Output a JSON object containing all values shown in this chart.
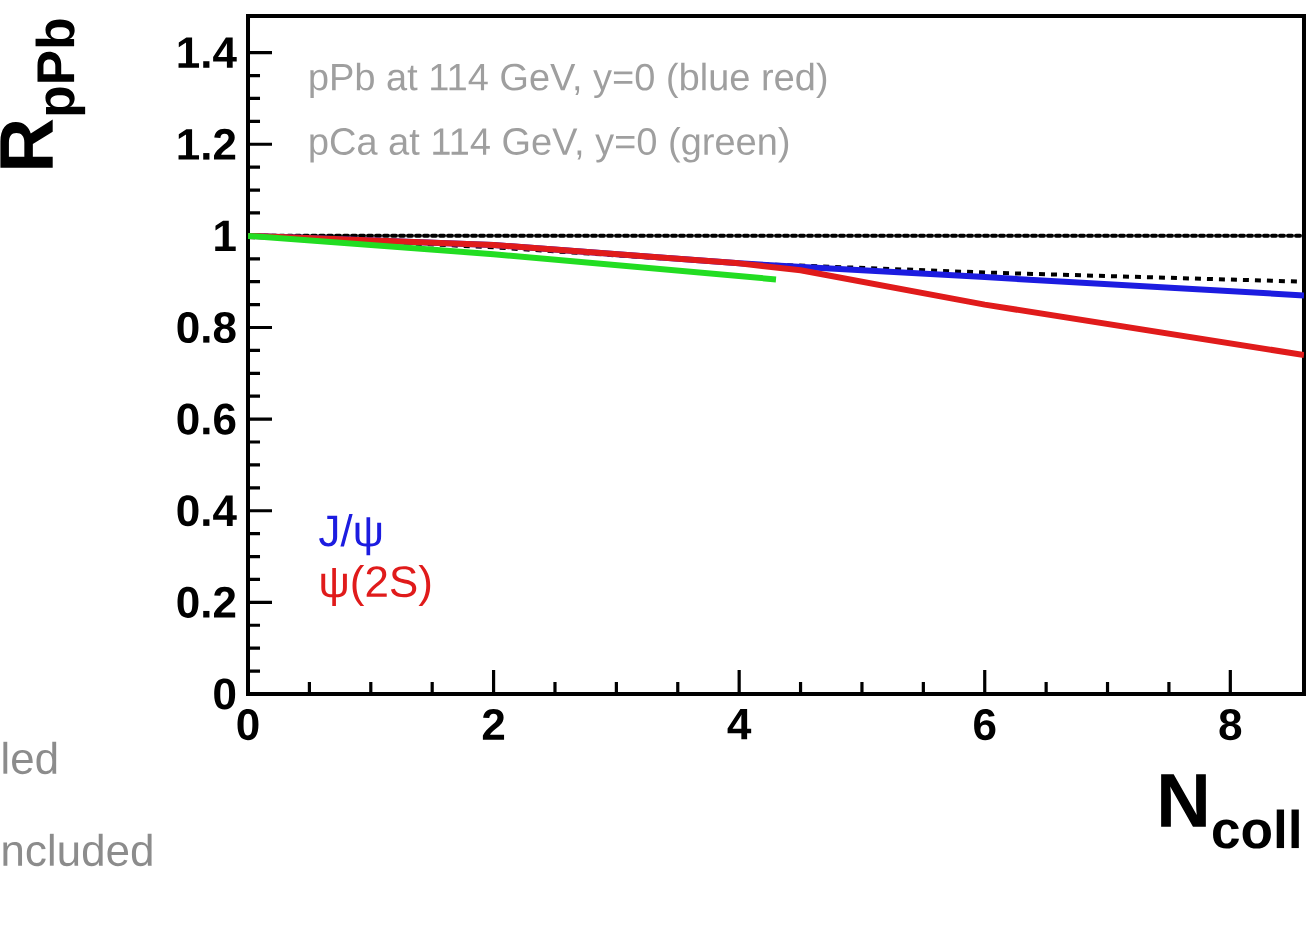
{
  "chart_data": {
    "type": "line",
    "xlabel": "N$_{coll}$",
    "ylabel": "R$_{pPb}$",
    "xlim": [
      0,
      8.6
    ],
    "ylim": [
      0,
      1.48
    ],
    "xticks": [
      0,
      2,
      4,
      6,
      8
    ],
    "yticks": [
      0,
      0.2,
      0.4,
      0.6,
      0.8,
      1,
      1.2,
      1.4
    ],
    "series": [
      {
        "color": "#000000",
        "line_style": "dashed",
        "x": [
          0,
          2,
          4,
          6,
          8.6
        ],
        "values": [
          1,
          0.975,
          0.94,
          0.92,
          0.9
        ]
      },
      {
        "name": "J/ψ",
        "color": "#1c1ce0",
        "x": [
          0,
          2,
          4,
          6,
          8.6
        ],
        "values": [
          1,
          0.98,
          0.94,
          0.91,
          0.87
        ]
      },
      {
        "name": "ψ(2S)",
        "color": "#e01b1b",
        "x": [
          0,
          2,
          4,
          4.5,
          6,
          8.6
        ],
        "values": [
          1,
          0.98,
          0.94,
          0.925,
          0.85,
          0.74
        ]
      },
      {
        "color": "#22dd22",
        "x": [
          0,
          2,
          4.3
        ],
        "values": [
          1,
          0.96,
          0.905
        ]
      }
    ],
    "ref_lines": [
      {
        "axis": "y",
        "value": 1,
        "line_style": "dotted",
        "color": "#000000"
      }
    ],
    "legend": "bottom left",
    "annotations": [
      "pPb at 114 GeV, y=0 (blue red)",
      "pCa at 114 GeV, y=0 (green)",
      "led",
      "ncluded"
    ]
  }
}
